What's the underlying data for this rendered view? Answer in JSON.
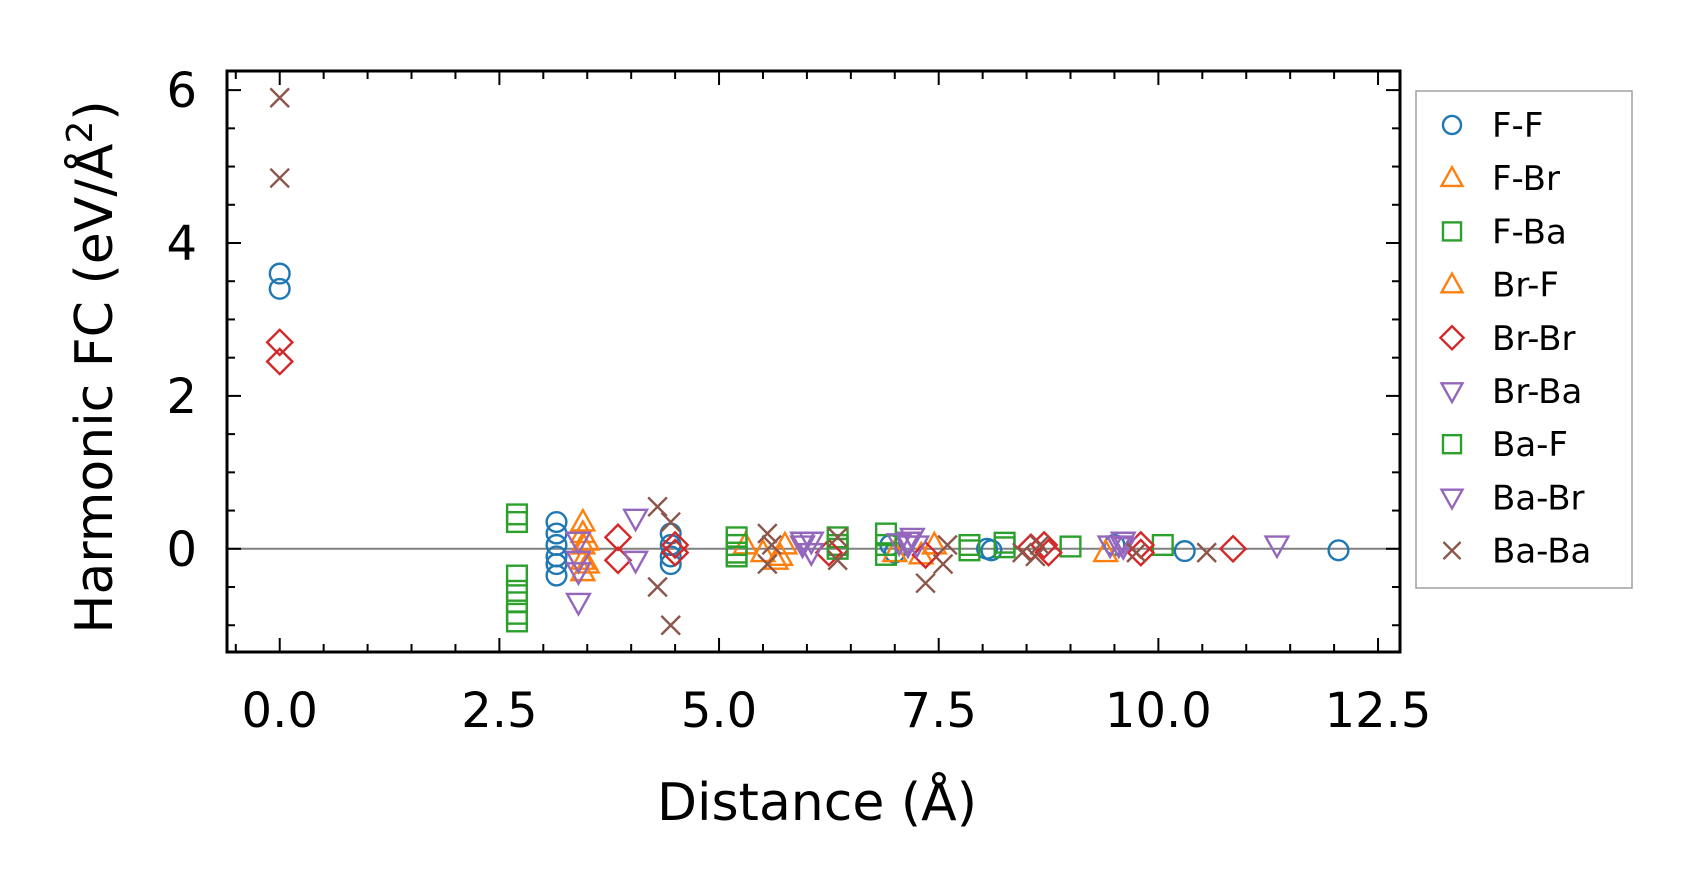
{
  "chart_data": {
    "type": "scatter",
    "xlabel": "Distance (Å)",
    "ylabel": "Harmonic FC (eV/Å²)",
    "ylabel_parts": {
      "main": "Harmonic FC (eV/Å",
      "sup": "2",
      "end": ")"
    },
    "xlim": [
      -0.6,
      12.75
    ],
    "ylim": [
      -1.35,
      6.25
    ],
    "x_ticks": [
      {
        "value": 0.0,
        "label": "0.0"
      },
      {
        "value": 2.5,
        "label": "2.5"
      },
      {
        "value": 5.0,
        "label": "5.0"
      },
      {
        "value": 7.5,
        "label": "7.5"
      },
      {
        "value": 10.0,
        "label": "10.0"
      },
      {
        "value": 12.5,
        "label": "12.5"
      }
    ],
    "y_ticks": [
      {
        "value": 0,
        "label": "0"
      },
      {
        "value": 2,
        "label": "2"
      },
      {
        "value": 4,
        "label": "4"
      },
      {
        "value": 6,
        "label": "6"
      }
    ],
    "x_minor_step": 0.5,
    "y_minor_step": 0.5,
    "zero_line": true,
    "grid": false,
    "legend_position": "outside-right",
    "series": [
      {
        "name": "F-F",
        "marker": "circle",
        "color": "#1f77b4",
        "points": [
          [
            0,
            3.6
          ],
          [
            0,
            3.4
          ],
          [
            3.15,
            0.35
          ],
          [
            3.15,
            0.2
          ],
          [
            3.15,
            0.05
          ],
          [
            3.15,
            -0.1
          ],
          [
            3.15,
            -0.2
          ],
          [
            3.15,
            -0.35
          ],
          [
            4.45,
            0.2
          ],
          [
            4.45,
            0.05
          ],
          [
            4.45,
            -0.1
          ],
          [
            4.45,
            -0.2
          ],
          [
            6.95,
            0.05
          ],
          [
            7.0,
            -0.05
          ],
          [
            8.05,
            0
          ],
          [
            8.1,
            -0.02
          ],
          [
            9.5,
            0.05
          ],
          [
            10.3,
            -0.03
          ],
          [
            12.05,
            -0.02
          ]
        ]
      },
      {
        "name": "F-Br",
        "marker": "triangle-up",
        "color": "#ff7f0e",
        "points": [
          [
            3.45,
            0.35
          ],
          [
            3.45,
            0.2
          ],
          [
            3.45,
            0.05
          ],
          [
            3.45,
            -0.15
          ],
          [
            3.45,
            -0.3
          ],
          [
            5.3,
            0.05
          ],
          [
            5.5,
            -0.05
          ],
          [
            5.7,
            -0.1
          ],
          [
            5.75,
            0.05
          ],
          [
            7.0,
            -0.05
          ],
          [
            7.3,
            -0.08
          ],
          [
            9.4,
            -0.05
          ]
        ]
      },
      {
        "name": "F-Ba",
        "marker": "square",
        "color": "#2ca02c",
        "points": [
          [
            2.7,
            0.45
          ],
          [
            2.7,
            0.35
          ],
          [
            5.2,
            0.15
          ],
          [
            5.2,
            0.05
          ],
          [
            5.2,
            -0.1
          ],
          [
            6.35,
            0.15
          ],
          [
            6.35,
            0.05
          ],
          [
            7.85,
            0.05
          ],
          [
            7.85,
            -0.02
          ],
          [
            8.25,
            0.08
          ],
          [
            8.25,
            0.02
          ],
          [
            9.0,
            0.03
          ],
          [
            10.05,
            0.05
          ]
        ]
      },
      {
        "name": "Br-F",
        "marker": "triangle-up",
        "color": "#ff7f0e",
        "points": [
          [
            3.5,
            0.1
          ],
          [
            3.5,
            -0.2
          ],
          [
            5.65,
            -0.15
          ],
          [
            7.45,
            0.05
          ]
        ]
      },
      {
        "name": "Br-Br",
        "marker": "diamond",
        "color": "#d62728",
        "points": [
          [
            0,
            2.7
          ],
          [
            0,
            2.45
          ],
          [
            3.85,
            0.15
          ],
          [
            3.85,
            -0.15
          ],
          [
            4.5,
            0.05
          ],
          [
            4.5,
            -0.05
          ],
          [
            6.25,
            -0.05
          ],
          [
            7.35,
            -0.08
          ],
          [
            8.55,
            0.02
          ],
          [
            8.7,
            0.05
          ],
          [
            8.75,
            -0.05
          ],
          [
            9.8,
            0.05
          ],
          [
            9.8,
            -0.05
          ],
          [
            10.85,
            0
          ]
        ]
      },
      {
        "name": "Br-Ba",
        "marker": "triangle-down",
        "color": "#9467bd",
        "points": [
          [
            3.4,
            -0.7
          ],
          [
            3.4,
            -0.15
          ],
          [
            3.4,
            0.1
          ],
          [
            4.05,
            0.4
          ],
          [
            4.05,
            -0.15
          ],
          [
            5.95,
            0.1
          ],
          [
            5.95,
            0.05
          ],
          [
            6.05,
            -0.05
          ],
          [
            7.15,
            0.1
          ],
          [
            7.15,
            0.05
          ],
          [
            7.2,
            0.15
          ],
          [
            9.55,
            0.05
          ],
          [
            9.6,
            0.1
          ],
          [
            11.35,
            0.05
          ]
        ]
      },
      {
        "name": "Ba-F",
        "marker": "square",
        "color": "#2ca02c",
        "points": [
          [
            2.7,
            -0.35
          ],
          [
            2.7,
            -0.55
          ],
          [
            2.7,
            -0.7
          ],
          [
            2.7,
            -0.85
          ],
          [
            2.7,
            -0.95
          ],
          [
            5.2,
            -0.05
          ],
          [
            6.35,
            0
          ],
          [
            6.9,
            0.2
          ],
          [
            6.9,
            0.05
          ],
          [
            6.9,
            -0.08
          ]
        ]
      },
      {
        "name": "Ba-Br",
        "marker": "triangle-down",
        "color": "#9467bd",
        "points": [
          [
            3.4,
            -0.3
          ],
          [
            6.05,
            0.1
          ],
          [
            7.05,
            0.08
          ],
          [
            7.25,
            0.05
          ],
          [
            9.45,
            0.05
          ],
          [
            9.6,
            0.03
          ]
        ]
      },
      {
        "name": "Ba-Ba",
        "marker": "x",
        "color": "#8c564b",
        "points": [
          [
            0,
            5.9
          ],
          [
            0,
            4.85
          ],
          [
            4.3,
            0.55
          ],
          [
            4.3,
            -0.5
          ],
          [
            4.45,
            0.35
          ],
          [
            4.45,
            -1.0
          ],
          [
            5.55,
            0.2
          ],
          [
            5.55,
            -0.2
          ],
          [
            5.6,
            0.05
          ],
          [
            6.35,
            0.15
          ],
          [
            6.35,
            -0.15
          ],
          [
            7.35,
            -0.45
          ],
          [
            7.55,
            -0.2
          ],
          [
            7.6,
            0.05
          ],
          [
            8.45,
            -0.05
          ],
          [
            8.6,
            -0.1
          ],
          [
            8.65,
            0.05
          ],
          [
            9.75,
            -0.05
          ],
          [
            10.55,
            -0.05
          ]
        ]
      }
    ]
  }
}
